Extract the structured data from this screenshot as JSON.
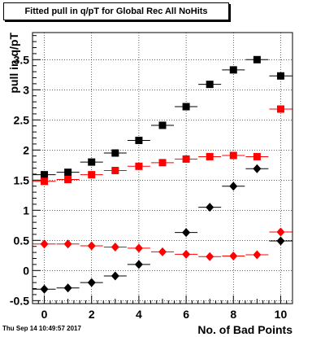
{
  "title": "Fitted pull in q/pT for Global Rec All NoHits",
  "timestamp": "Thu Sep 14 10:49:57 2017",
  "chart_data": {
    "type": "scatter",
    "title": "Fitted pull in q/pT for Global Rec All NoHits",
    "xlabel": "No. of Bad Points",
    "ylabel": "pull in q/pT",
    "xlim": [
      -0.5,
      10.5
    ],
    "ylim": [
      -0.55,
      3.95
    ],
    "x_ticks": [
      0,
      2,
      4,
      6,
      8,
      10
    ],
    "y_ticks": [
      -0.5,
      0,
      0.5,
      1,
      1.5,
      2,
      2.5,
      3,
      3.5
    ],
    "y_tick_labels": [
      "-0.5",
      "0",
      "0.5",
      "1",
      "1.5",
      "2",
      "2.5",
      "3",
      "3.5"
    ],
    "grid": true,
    "series": [
      {
        "marker": "square",
        "color": "#000000",
        "x": [
          0,
          1,
          2,
          3,
          4,
          5,
          6,
          7,
          8,
          9,
          10
        ],
        "y": [
          1.59,
          1.63,
          1.8,
          1.95,
          2.16,
          2.41,
          2.72,
          3.09,
          3.33,
          3.5,
          3.23
        ]
      },
      {
        "marker": "square",
        "color": "#ff0000",
        "x": [
          0,
          1,
          2,
          3,
          4,
          5,
          6,
          7,
          8,
          9,
          10
        ],
        "y": [
          1.48,
          1.51,
          1.59,
          1.66,
          1.73,
          1.79,
          1.85,
          1.89,
          1.91,
          1.89,
          2.68
        ]
      },
      {
        "marker": "diamond",
        "color": "#ff0000",
        "x": [
          0,
          1,
          2,
          3,
          4,
          5,
          6,
          7,
          8,
          9,
          10
        ],
        "y": [
          0.44,
          0.44,
          0.41,
          0.39,
          0.37,
          0.31,
          0.27,
          0.23,
          0.24,
          0.26,
          0.64
        ]
      },
      {
        "marker": "diamond",
        "color": "#000000",
        "x": [
          0,
          1,
          2,
          3,
          4,
          5,
          6,
          7,
          8,
          9,
          10
        ],
        "y": [
          -0.31,
          -0.29,
          -0.2,
          -0.09,
          0.1,
          null,
          0.63,
          1.05,
          1.4,
          1.69,
          0.49
        ]
      }
    ]
  }
}
